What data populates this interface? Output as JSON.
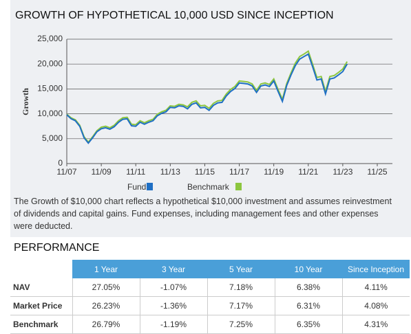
{
  "chart_data": {
    "type": "line",
    "title": "GROWTH OF HYPOTHETICAL 10,000 USD SINCE INCEPTION",
    "ylabel": "Growth",
    "description": "The Growth of $10,000 chart reflects a hypothetical $10,000 investment and assumes reinvestment of dividends and capital gains. Fund expenses, including management fees and other expenses were deducted.",
    "categories": [
      "11/07",
      null,
      null,
      null,
      null,
      null,
      null,
      null,
      "11/09",
      null,
      null,
      null,
      null,
      null,
      null,
      null,
      "11/11",
      null,
      null,
      null,
      null,
      null,
      null,
      null,
      "11/13",
      null,
      null,
      null,
      null,
      null,
      null,
      null,
      "11/15",
      null,
      null,
      null,
      null,
      null,
      null,
      null,
      "11/17",
      null,
      null,
      null,
      null,
      null,
      null,
      null,
      "11/19",
      null,
      null,
      null,
      null,
      null,
      null,
      null,
      "11/21",
      null,
      null,
      null,
      null,
      null,
      null,
      null,
      "11/23",
      null,
      null,
      null,
      null,
      null,
      null,
      null,
      "11/25"
    ],
    "series": [
      {
        "name": "Fund",
        "color": "#1f6fc4",
        "values": [
          9800,
          9000,
          8600,
          7500,
          5200,
          4100,
          5200,
          6400,
          7000,
          7200,
          6900,
          7400,
          8300,
          8900,
          9000,
          7600,
          7500,
          8300,
          7900,
          8300,
          8600,
          9600,
          10100,
          10400,
          11300,
          11200,
          11600,
          11500,
          11000,
          11900,
          12200,
          11200,
          11300,
          10700,
          11700,
          12200,
          12300,
          13600,
          14500,
          15100,
          16200,
          16100,
          16000,
          15600,
          14300,
          15600,
          15800,
          15500,
          16600,
          14500,
          12500,
          15700,
          17800,
          19700,
          21000,
          21500,
          22000,
          19500,
          16800,
          17000,
          14000,
          17000,
          17200,
          17800,
          18500,
          20000,
          null,
          null,
          null,
          null,
          null,
          null,
          null
        ]
      },
      {
        "name": "Benchmark",
        "color": "#8cc63f",
        "values": [
          9900,
          9200,
          8800,
          7700,
          5400,
          4300,
          5400,
          6600,
          7300,
          7500,
          7200,
          7700,
          8600,
          9200,
          9300,
          7900,
          7800,
          8600,
          8200,
          8600,
          8900,
          9900,
          10400,
          10700,
          11600,
          11500,
          11900,
          11800,
          11400,
          12300,
          12600,
          11600,
          11700,
          11100,
          12100,
          12600,
          12700,
          14000,
          14900,
          15500,
          16600,
          16500,
          16400,
          16000,
          14700,
          16000,
          16200,
          15900,
          17000,
          14900,
          12900,
          16100,
          18200,
          20200,
          21500,
          22000,
          22600,
          20000,
          17300,
          17500,
          14500,
          17500,
          17700,
          18300,
          19000,
          20500,
          null,
          null,
          null,
          null,
          null,
          null,
          null
        ]
      }
    ],
    "ylim": [
      0,
      25000
    ],
    "yticks": [
      0,
      {
        "value": 5000,
        "label": "5,000"
      },
      {
        "value": 10000,
        "label": "10,000"
      },
      {
        "value": 15000,
        "label": "15,000"
      },
      {
        "value": 20000,
        "label": "20,000"
      },
      {
        "value": 25000,
        "label": "25,000"
      }
    ],
    "grid": true
  },
  "performance": {
    "title": "PERFORMANCE",
    "columns": [
      "1 Year",
      "3 Year",
      "5 Year",
      "10 Year",
      "Since Inception"
    ],
    "rows": [
      [
        "NAV",
        "27.05%",
        "-1.07%",
        "7.18%",
        "6.38%",
        "4.11%"
      ],
      [
        "Market Price",
        "26.23%",
        "-1.36%",
        "7.17%",
        "6.31%",
        "4.08%"
      ],
      [
        "Benchmark",
        "26.79%",
        "-1.19%",
        "7.25%",
        "6.35%",
        "4.31%"
      ]
    ]
  }
}
